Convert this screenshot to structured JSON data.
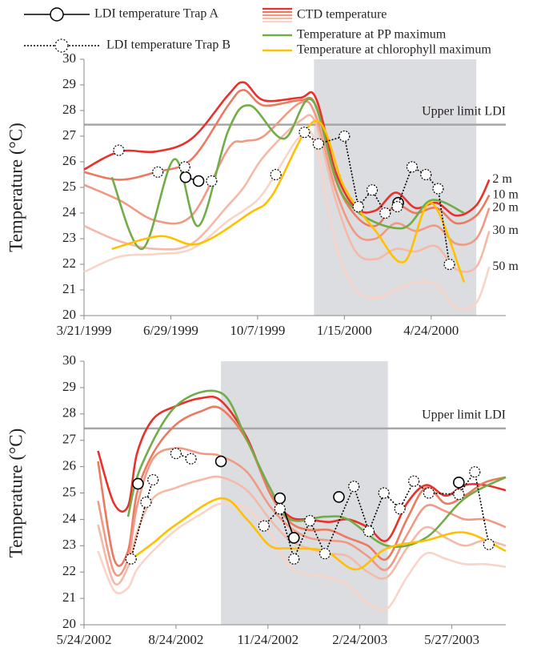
{
  "chart_data": [
    {
      "type": "line",
      "y_label": "Temperature (°C)",
      "ctd_name": "CTD temperature",
      "xlim": [
        "3/21/1999",
        "7/19/2000"
      ],
      "xticks": [
        "3/21/1999",
        "6/29/1999",
        "10/7/1999",
        "1/15/2000",
        "4/24/2000"
      ],
      "ylim": [
        20,
        30
      ],
      "yticks": [
        20,
        21,
        22,
        23,
        24,
        25,
        26,
        27,
        28,
        29,
        30
      ],
      "shade": [
        "12/11/1999",
        "6/15/2000"
      ],
      "shade_color": "#dcdde0",
      "hline": {
        "value": 27.45,
        "label": "Upper limit LDI"
      },
      "hline_color": "#a6a6a6",
      "x": [
        "3/21/1999",
        "5/1/1999",
        "6/12/1999",
        "7/23/1999",
        "9/3/1999",
        "9/21/1999",
        "10/14/1999",
        "11/25/1999",
        "12/13/1999",
        "1/5/2000",
        "1/28/2000",
        "2/20/2000",
        "3/14/2000",
        "4/6/2000",
        "4/30/2000",
        "5/23/2000",
        "6/15/2000",
        "6/30/2000"
      ],
      "series": [
        {
          "name": "LDI temperature Trap A",
          "color": "#000000",
          "marker": "circle",
          "dash": false,
          "x": [
            "7/16/1999",
            "7/31/1999",
            null,
            "3/17/2000"
          ],
          "values": [
            25.4,
            25.25,
            null,
            24.4
          ]
        },
        {
          "name": "LDI temperature Trap B",
          "color": "#000000",
          "marker": "circle",
          "dash": true,
          "x": [
            "4/30/1999",
            null,
            "6/14/1999",
            null,
            "7/15/1999",
            null,
            "8/15/1999",
            null,
            "10/28/1999",
            null,
            "11/30/1999",
            "12/16/1999",
            "1/15/2000",
            "1/31/2000",
            "2/16/2000",
            "3/2/2000",
            "3/16/2000",
            "4/2/2000",
            "4/18/2000",
            "5/2/2000",
            "5/15/2000"
          ],
          "values": [
            26.45,
            null,
            25.6,
            null,
            25.8,
            null,
            25.25,
            null,
            25.5,
            null,
            27.15,
            26.7,
            27.0,
            24.25,
            24.9,
            24.0,
            24.25,
            25.8,
            25.5,
            24.95,
            22.0
          ]
        },
        {
          "name": "2 m",
          "color": "#e8312a",
          "end_label": true,
          "values": [
            25.7,
            26.4,
            26.4,
            26.9,
            28.6,
            29.1,
            28.4,
            28.5,
            28.5,
            25.6,
            24.2,
            24.1,
            24.8,
            24.2,
            24.4,
            23.9,
            24.3,
            25.3
          ]
        },
        {
          "name": "10 m",
          "color": "#ec7a60",
          "end_label": true,
          "values": [
            25.6,
            25.3,
            25.6,
            26.1,
            28.2,
            28.8,
            28.2,
            28.4,
            28.2,
            25.3,
            23.9,
            23.5,
            24.3,
            24.0,
            24.2,
            23.6,
            23.9,
            24.7
          ]
        },
        {
          "name": "20 m",
          "color": "#f09a84",
          "end_label": true,
          "values": [
            25.1,
            24.5,
            23.7,
            23.9,
            26.5,
            26.8,
            27.0,
            28.3,
            27.8,
            24.9,
            23.2,
            23.0,
            23.6,
            23.3,
            23.5,
            22.8,
            23.0,
            24.2
          ]
        },
        {
          "name": "30 m",
          "color": "#f5b9a8",
          "end_label": true,
          "values": [
            23.5,
            22.9,
            22.6,
            22.8,
            24.3,
            25.0,
            26.2,
            27.6,
            27.5,
            24.5,
            22.5,
            22.2,
            22.6,
            22.5,
            22.7,
            21.8,
            21.9,
            23.3
          ]
        },
        {
          "name": "50 m",
          "color": "#f8d5c8",
          "end_label": true,
          "values": [
            21.7,
            22.3,
            22.4,
            22.6,
            23.7,
            24.1,
            24.8,
            27.0,
            26.7,
            22.8,
            21.0,
            20.7,
            21.0,
            21.3,
            21.2,
            20.3,
            20.5,
            21.9
          ]
        },
        {
          "name": "Temperature at PP maximum",
          "color": "#70ad47",
          "x": [
            "4/22/1999",
            "5/27/1999",
            "7/3/1999",
            "7/31/1999",
            "9/3/1999",
            "9/28/1999",
            "11/6/1999",
            "12/9/1999",
            "1/15/2000",
            "3/19/2000",
            "4/24/2000",
            "6/1/2000"
          ],
          "values": [
            25.4,
            22.6,
            26.1,
            23.5,
            27.2,
            28.2,
            26.9,
            28.4,
            24.6,
            23.4,
            24.5,
            24.0
          ]
        },
        {
          "name": "Temperature at chlorophyll maximum",
          "color": "#ffc000",
          "x": [
            "4/22/1999",
            "6/17/1999",
            "7/31/1999",
            "9/28/1999",
            "10/24/1999",
            "12/13/1999",
            "1/15/2000",
            "2/20/2000",
            "3/24/2000",
            "4/24/2000",
            "6/1/2000"
          ],
          "values": [
            22.6,
            23.1,
            22.8,
            24.0,
            24.7,
            27.6,
            25.0,
            23.3,
            22.1,
            24.4,
            21.3
          ]
        }
      ]
    },
    {
      "type": "line",
      "y_label": "Temperature (°C)",
      "xlim": [
        "5/24/2002",
        "7/20/2003"
      ],
      "xticks": [
        "5/24/2002",
        "8/24/2002",
        "11/24/2002",
        "2/24/2003",
        "5/27/2003"
      ],
      "ylim": [
        20,
        30
      ],
      "yticks": [
        20,
        21,
        22,
        23,
        24,
        25,
        26,
        27,
        28,
        29,
        30
      ],
      "shade": [
        "10/8/2002",
        "3/24/2003"
      ],
      "shade_color": "#dcdde0",
      "hline": {
        "value": 27.45,
        "label": "Upper limit LDI"
      },
      "hline_color": "#a6a6a6",
      "x": [
        "6/7/2002",
        "6/23/2002",
        "7/7/2002",
        "7/16/2002",
        "8/1/2002",
        "8/24/2002",
        "9/18/2002",
        "10/8/2002",
        "11/3/2002",
        "11/26/2002",
        "12/16/2002",
        "1/4/2003",
        "1/24/2003",
        "2/12/2003",
        "3/4/2003",
        "3/23/2003",
        "4/12/2003",
        "5/1/2003",
        "5/21/2003",
        "6/9/2003",
        "6/29/2003",
        "7/20/2003"
      ],
      "series": [
        {
          "color": "#000000",
          "marker": "circle",
          "dash": false,
          "x": [
            "7/17/2002",
            null,
            "10/8/2002",
            null,
            "12/6/2002",
            "12/20/2002",
            null,
            "2/3/2003",
            null,
            "6/3/2003"
          ],
          "values": [
            25.35,
            null,
            26.2,
            null,
            24.8,
            23.3,
            null,
            24.85,
            null,
            25.4
          ]
        },
        {
          "color": "#000000",
          "marker": "circle",
          "dash": true,
          "x": [
            "7/10/2002",
            "7/25/2002",
            "8/1/2002",
            null,
            "8/24/2002",
            "9/8/2002",
            null,
            "11/20/2002",
            "12/6/2002",
            "12/20/2002",
            "1/5/2003",
            "1/20/2003",
            "2/18/2003",
            "3/5/2003",
            "3/20/2003",
            "4/5/2003",
            "4/19/2003",
            "5/4/2003",
            "6/3/2003",
            "6/19/2003",
            "7/3/2003"
          ],
          "values": [
            22.5,
            24.65,
            25.5,
            null,
            26.5,
            26.3,
            null,
            23.75,
            24.4,
            22.5,
            23.95,
            22.7,
            25.25,
            23.55,
            25.0,
            24.4,
            25.45,
            25.0,
            24.95,
            25.8,
            23.05
          ]
        },
        {
          "color": "#e8312a",
          "values": [
            26.6,
            24.6,
            24.5,
            26.5,
            27.8,
            28.3,
            28.6,
            28.5,
            27.1,
            25.0,
            24.1,
            24.0,
            23.9,
            24.0,
            23.7,
            23.2,
            24.6,
            25.3,
            24.9,
            25.3,
            25.3,
            25.1
          ]
        },
        {
          "color": "#ec7a60",
          "values": [
            26.2,
            22.5,
            22.8,
            25.0,
            26.5,
            27.6,
            28.1,
            28.2,
            27.0,
            25.0,
            23.9,
            23.6,
            23.6,
            23.3,
            23.0,
            22.5,
            24.0,
            25.2,
            24.6,
            24.9,
            25.4,
            25.6
          ]
        },
        {
          "color": "#f09a84",
          "values": [
            24.7,
            22.0,
            22.5,
            24.5,
            26.3,
            26.7,
            26.5,
            26.4,
            25.8,
            24.5,
            23.7,
            23.3,
            23.2,
            23.1,
            22.6,
            22.1,
            23.4,
            24.5,
            24.3,
            24.0,
            24.0,
            23.7
          ]
        },
        {
          "color": "#f5b9a8",
          "values": [
            23.8,
            21.6,
            22.2,
            23.5,
            24.8,
            25.2,
            25.5,
            25.6,
            25.1,
            24.0,
            23.2,
            22.9,
            22.7,
            22.6,
            22.0,
            21.8,
            22.9,
            23.7,
            23.3,
            23.0,
            23.2,
            23.0
          ]
        },
        {
          "color": "#f8d5c8",
          "values": [
            22.8,
            21.3,
            21.4,
            22.1,
            22.8,
            23.6,
            24.2,
            24.6,
            24.4,
            23.5,
            22.2,
            21.9,
            21.8,
            21.5,
            20.8,
            20.6,
            21.8,
            22.7,
            22.5,
            22.3,
            22.3,
            22.2
          ]
        },
        {
          "color": "#70ad47",
          "x": [
            "7/7/2002",
            "7/20/2002",
            "8/24/2002",
            "10/8/2002",
            "11/3/2002",
            "11/26/2002",
            "12/16/2002",
            "1/20/2003",
            "2/12/2003",
            "3/23/2003",
            "5/1/2003",
            "6/9/2003",
            "7/20/2003"
          ],
          "values": [
            24.1,
            26.0,
            28.3,
            28.8,
            27.0,
            25.2,
            24.0,
            24.1,
            24.0,
            23.0,
            23.3,
            24.8,
            25.6
          ]
        },
        {
          "color": "#ffc000",
          "x": [
            "7/7/2002",
            "8/1/2002",
            "8/24/2002",
            "10/8/2002",
            "11/3/2002",
            "11/26/2002",
            "12/16/2002",
            "1/20/2003",
            "2/20/2003",
            "3/23/2003",
            "5/1/2003",
            "6/9/2003",
            "7/20/2003"
          ],
          "values": [
            22.4,
            23.1,
            23.8,
            24.8,
            24.0,
            23.0,
            22.9,
            22.8,
            22.1,
            22.9,
            23.2,
            23.5,
            22.8
          ]
        }
      ]
    }
  ]
}
